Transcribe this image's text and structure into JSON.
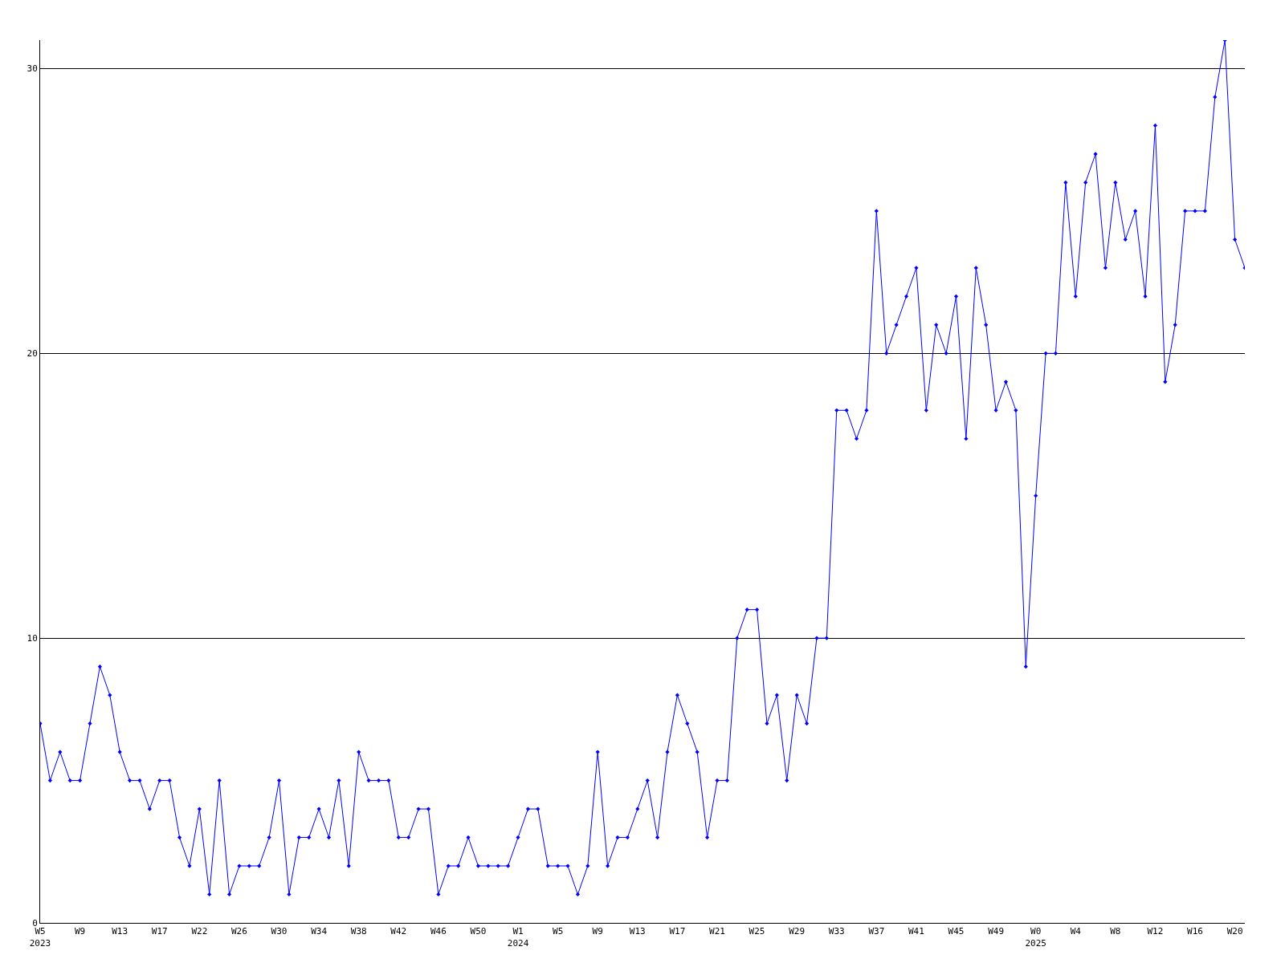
{
  "chart_data": {
    "type": "line",
    "categories": [
      "W5\n2023",
      null,
      null,
      null,
      "W9",
      null,
      null,
      null,
      "W13",
      null,
      null,
      null,
      "W17",
      null,
      null,
      null,
      "W22",
      null,
      null,
      null,
      "W26",
      null,
      null,
      null,
      "W30",
      null,
      null,
      null,
      "W34",
      null,
      null,
      null,
      "W38",
      null,
      null,
      null,
      "W42",
      null,
      null,
      null,
      "W46",
      null,
      null,
      null,
      "W50",
      null,
      null,
      null,
      "W1\n2024",
      null,
      null,
      null,
      "W5",
      null,
      null,
      null,
      "W9",
      null,
      null,
      null,
      "W13",
      null,
      null,
      null,
      "W17",
      null,
      null,
      null,
      "W21",
      null,
      null,
      null,
      "W25",
      null,
      null,
      null,
      "W29",
      null,
      null,
      null,
      "W33",
      null,
      null,
      null,
      "W37",
      null,
      null,
      null,
      "W41",
      null,
      null,
      null,
      "W45",
      null,
      null,
      null,
      "W49",
      null,
      null,
      null,
      "W0\n2025",
      null,
      null,
      null,
      "W4",
      null,
      null,
      null,
      "W8",
      null,
      null,
      null,
      "W12",
      null,
      null,
      null,
      "W16",
      null,
      null,
      null,
      "W20",
      null
    ],
    "series": [
      {
        "color": "#0000ff",
        "values": [
          7,
          5,
          6,
          5,
          5,
          7,
          9,
          8,
          6,
          5,
          5,
          4,
          5,
          5,
          3,
          2,
          4,
          1,
          5,
          1,
          2,
          2,
          2,
          3,
          5,
          1,
          3,
          3,
          4,
          3,
          5,
          2,
          6,
          5,
          5,
          5,
          3,
          3,
          4,
          4,
          1,
          2,
          2,
          3,
          2,
          2,
          2,
          2,
          3,
          4,
          4,
          2,
          2,
          2,
          1,
          2,
          6,
          2,
          3,
          3,
          4,
          5,
          3,
          6,
          8,
          7,
          6,
          3,
          5,
          5,
          10,
          11,
          11,
          7,
          8,
          5,
          8,
          7,
          10,
          10,
          18,
          18,
          17,
          18,
          25,
          20,
          21,
          22,
          23,
          18,
          21,
          20,
          22,
          17,
          23,
          21,
          18,
          19,
          18,
          9,
          15,
          20,
          20,
          26,
          22,
          26,
          27,
          23,
          26,
          24,
          25,
          22,
          28,
          19,
          21,
          25,
          25,
          25,
          29,
          31,
          24,
          23
        ]
      }
    ],
    "ylim": [
      0,
      31
    ],
    "yticks": [
      0,
      10,
      20,
      30
    ],
    "grid": "y",
    "marker": "diamond",
    "line_style": "solid"
  }
}
